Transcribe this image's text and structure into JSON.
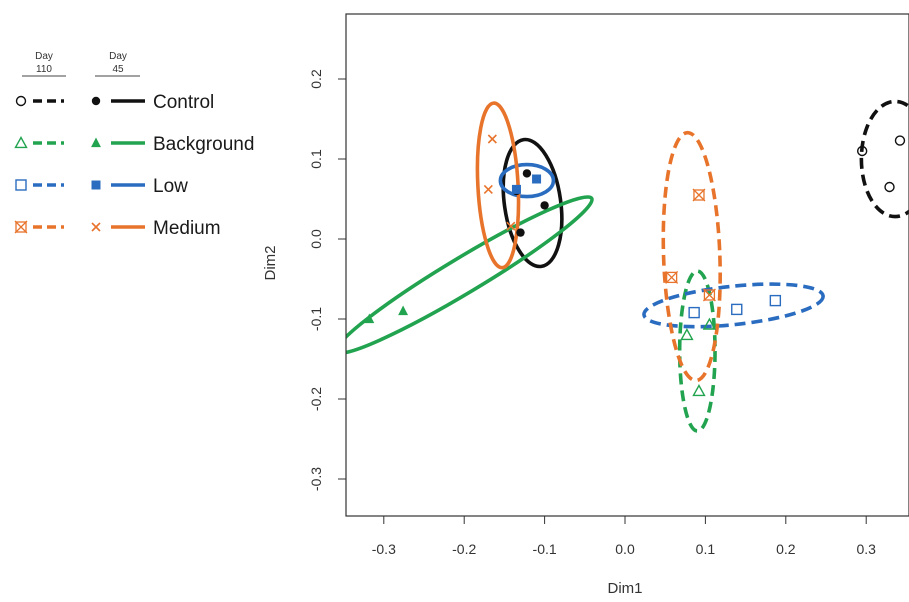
{
  "chart_data": {
    "type": "scatter",
    "title": "",
    "xlabel": "Dim1",
    "ylabel": "Dim2",
    "xlim": [
      -0.345,
      0.345
    ],
    "ylim": [
      -0.345,
      0.285
    ],
    "x_ticks": [
      -0.3,
      -0.2,
      -0.1,
      0.0,
      0.1,
      0.2,
      0.3
    ],
    "y_ticks": [
      -0.3,
      -0.2,
      -0.1,
      0.0,
      0.1,
      0.2
    ],
    "x_tick_labels": [
      "-0.3",
      "-0.2",
      "-0.1",
      "0.0",
      "0.1",
      "0.2",
      "0.3"
    ],
    "y_tick_labels": [
      "-0.3",
      "-0.2",
      "-0.1",
      "0.0",
      "0.1",
      "0.2"
    ],
    "grid": false,
    "legend_position": "left",
    "legend_headers": [
      "Day\n110",
      "Day\n45"
    ],
    "colors": {
      "Control": "#111111",
      "Background": "#22a34f",
      "Low": "#2a6cbf",
      "Medium": "#e8742c"
    },
    "series": [
      {
        "name": "Control",
        "day": "110",
        "marker": "open-circle",
        "points": [
          [
            0.295,
            0.11
          ],
          [
            0.342,
            0.123
          ],
          [
            0.329,
            0.065
          ]
        ],
        "ellipse": {
          "cx": 0.336,
          "cy": 0.1,
          "rx": 0.042,
          "ry": 0.072,
          "angle": 0,
          "dashed": true
        }
      },
      {
        "name": "Control",
        "day": "45",
        "marker": "filled-circle",
        "points": [
          [
            -0.122,
            0.082
          ],
          [
            -0.1,
            0.042
          ],
          [
            -0.13,
            0.008
          ],
          [
            -0.135,
            0.06
          ]
        ],
        "ellipse": {
          "cx": -0.115,
          "cy": 0.045,
          "rx": 0.035,
          "ry": 0.08,
          "angle": 8,
          "dashed": false
        }
      },
      {
        "name": "Background",
        "day": "110",
        "marker": "open-triangle",
        "points": [
          [
            0.105,
            -0.107
          ],
          [
            0.077,
            -0.12
          ],
          [
            0.092,
            -0.19
          ]
        ],
        "ellipse": {
          "cx": 0.09,
          "cy": -0.14,
          "rx": 0.022,
          "ry": 0.1,
          "angle": 0,
          "dashed": true
        }
      },
      {
        "name": "Background",
        "day": "45",
        "marker": "filled-triangle",
        "points": [
          [
            -0.318,
            -0.1
          ],
          [
            -0.276,
            -0.09
          ]
        ],
        "ellipse": {
          "cx": -0.2,
          "cy": -0.045,
          "rx": 0.185,
          "ry": 0.022,
          "angle": 31,
          "dashed": false
        }
      },
      {
        "name": "Low",
        "day": "110",
        "marker": "open-square",
        "points": [
          [
            0.086,
            -0.092
          ],
          [
            0.139,
            -0.088
          ],
          [
            0.187,
            -0.077
          ]
        ],
        "ellipse": {
          "cx": 0.135,
          "cy": -0.083,
          "rx": 0.112,
          "ry": 0.024,
          "angle": 6,
          "dashed": true
        }
      },
      {
        "name": "Low",
        "day": "45",
        "marker": "filled-square",
        "points": [
          [
            -0.11,
            0.075
          ],
          [
            -0.135,
            0.062
          ]
        ],
        "ellipse": {
          "cx": -0.122,
          "cy": 0.073,
          "rx": 0.033,
          "ry": 0.02,
          "angle": 0,
          "dashed": false
        }
      },
      {
        "name": "Medium",
        "day": "110",
        "marker": "open-star",
        "points": [
          [
            0.092,
            0.055
          ],
          [
            0.058,
            -0.048
          ],
          [
            0.105,
            -0.07
          ]
        ],
        "ellipse": {
          "cx": 0.083,
          "cy": -0.022,
          "rx": 0.035,
          "ry": 0.155,
          "angle": 2,
          "dashed": true
        }
      },
      {
        "name": "Medium",
        "day": "45",
        "marker": "x-cross",
        "points": [
          [
            -0.165,
            0.125
          ],
          [
            -0.17,
            0.062
          ],
          [
            -0.142,
            0.016
          ]
        ],
        "ellipse": {
          "cx": -0.158,
          "cy": 0.067,
          "rx": 0.025,
          "ry": 0.103,
          "angle": 3,
          "dashed": false
        }
      }
    ]
  },
  "legend": {
    "header_day110": [
      "Day",
      "110"
    ],
    "header_day45": [
      "Day",
      "45"
    ],
    "items": [
      {
        "label": "Control",
        "group": "Control"
      },
      {
        "label": "Background",
        "group": "Background"
      },
      {
        "label": "Low",
        "group": "Low"
      },
      {
        "label": "Medium",
        "group": "Medium"
      }
    ]
  }
}
